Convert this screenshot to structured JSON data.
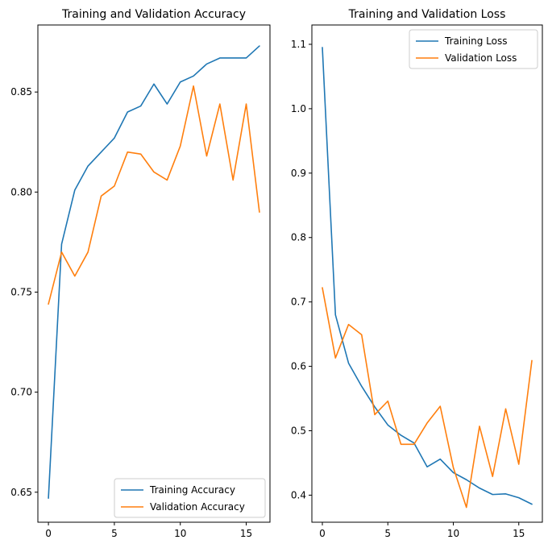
{
  "chart_data": [
    {
      "type": "line",
      "title": "Training and Validation Accuracy",
      "xlabel": "",
      "ylabel": "",
      "xlim": [
        -0.8,
        16.8
      ],
      "ylim": [
        0.635,
        0.8835
      ],
      "xticks": [
        0,
        5,
        10,
        15
      ],
      "yticks": [
        0.65,
        0.7,
        0.75,
        0.8,
        0.85
      ],
      "ytick_labels": [
        "0.65",
        "0.70",
        "0.75",
        "0.80",
        "0.85"
      ],
      "legend_position": "lower right",
      "grid": false,
      "x": [
        0,
        1,
        2,
        3,
        4,
        5,
        6,
        7,
        8,
        9,
        10,
        11,
        12,
        13,
        14,
        15,
        16
      ],
      "series": [
        {
          "name": "Training Accuracy",
          "color": "#1f77b4",
          "values": [
            0.647,
            0.774,
            0.801,
            0.813,
            0.82,
            0.827,
            0.84,
            0.843,
            0.854,
            0.844,
            0.855,
            0.858,
            0.864,
            0.867,
            0.867,
            0.867,
            0.873
          ]
        },
        {
          "name": "Validation Accuracy",
          "color": "#ff7f0e",
          "values": [
            0.744,
            0.77,
            0.758,
            0.77,
            0.798,
            0.803,
            0.82,
            0.819,
            0.81,
            0.806,
            0.823,
            0.853,
            0.818,
            0.844,
            0.806,
            0.844,
            0.79
          ]
        }
      ]
    },
    {
      "type": "line",
      "title": "Training and Validation Loss",
      "xlabel": "",
      "ylabel": "",
      "xlim": [
        -0.8,
        16.8
      ],
      "ylim": [
        0.358,
        1.13
      ],
      "xticks": [
        0,
        5,
        10,
        15
      ],
      "yticks": [
        0.4,
        0.5,
        0.6,
        0.7,
        0.8,
        0.9,
        1.0,
        1.1
      ],
      "ytick_labels": [
        "0.4",
        "0.5",
        "0.6",
        "0.7",
        "0.8",
        "0.9",
        "1.0",
        "1.1"
      ],
      "legend_position": "upper right",
      "grid": false,
      "x": [
        0,
        1,
        2,
        3,
        4,
        5,
        6,
        7,
        8,
        9,
        10,
        11,
        12,
        13,
        14,
        15,
        16
      ],
      "series": [
        {
          "name": "Training Loss",
          "color": "#1f77b4",
          "values": [
            1.095,
            0.68,
            0.605,
            0.569,
            0.537,
            0.509,
            0.493,
            0.481,
            0.444,
            0.456,
            0.435,
            0.424,
            0.411,
            0.401,
            0.402,
            0.396,
            0.386
          ]
        },
        {
          "name": "Validation Loss",
          "color": "#ff7f0e",
          "values": [
            0.722,
            0.613,
            0.665,
            0.649,
            0.525,
            0.546,
            0.479,
            0.479,
            0.512,
            0.538,
            0.443,
            0.381,
            0.507,
            0.429,
            0.534,
            0.448,
            0.609
          ]
        }
      ]
    }
  ]
}
